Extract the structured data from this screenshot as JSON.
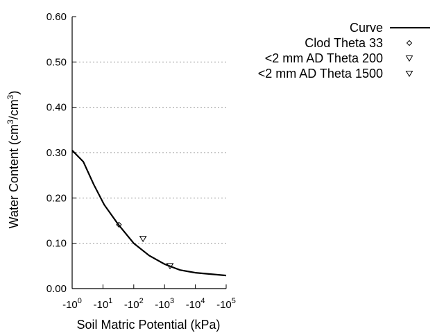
{
  "chart_data": {
    "type": "line",
    "title": "",
    "xlabel": "Soil Matric Potential (kPa)",
    "ylabel_main": "Water Content (cm",
    "ylabel_sup1": "3",
    "ylabel_mid": "/cm",
    "ylabel_sup2": "3",
    "ylabel_end": ")",
    "x_scale": "log (negative)",
    "xlim": [
      1,
      100000
    ],
    "ylim": [
      0,
      0.6
    ],
    "grid": "horizontal dotted",
    "x_ticks": [
      {
        "base": "-10",
        "exp": "0",
        "value": 1
      },
      {
        "base": "-10",
        "exp": "1",
        "value": 10
      },
      {
        "base": "-10",
        "exp": "2",
        "value": 100
      },
      {
        "base": "-10",
        "exp": "3",
        "value": 1000
      },
      {
        "base": "-10",
        "exp": "4",
        "value": 10000
      },
      {
        "base": "-10",
        "exp": "5",
        "value": 100000
      }
    ],
    "y_ticks": [
      "0.00",
      "0.10",
      "0.20",
      "0.30",
      "0.40",
      "0.50",
      "0.60"
    ],
    "legend_placement": "top-right, outside plot",
    "series": [
      {
        "name": "Curve",
        "marker": "line",
        "color": "#000000",
        "points": [
          [
            1,
            0.305
          ],
          [
            2.3,
            0.28
          ],
          [
            5,
            0.23
          ],
          [
            11,
            0.185
          ],
          [
            31,
            0.142
          ],
          [
            100,
            0.1
          ],
          [
            316,
            0.073
          ],
          [
            1000,
            0.054
          ],
          [
            3162,
            0.041
          ],
          [
            10000,
            0.035
          ],
          [
            100000,
            0.029
          ]
        ]
      },
      {
        "name": "Clod Theta 33",
        "marker": "diamond",
        "points": [
          [
            33,
            0.141
          ]
        ]
      },
      {
        "name": "<2 mm AD Theta 200",
        "marker": "triangle-down",
        "points": [
          [
            200,
            0.11
          ]
        ]
      },
      {
        "name": "<2 mm AD Theta 1500",
        "marker": "triangle-down",
        "points": [
          [
            1500,
            0.05
          ]
        ]
      }
    ]
  }
}
